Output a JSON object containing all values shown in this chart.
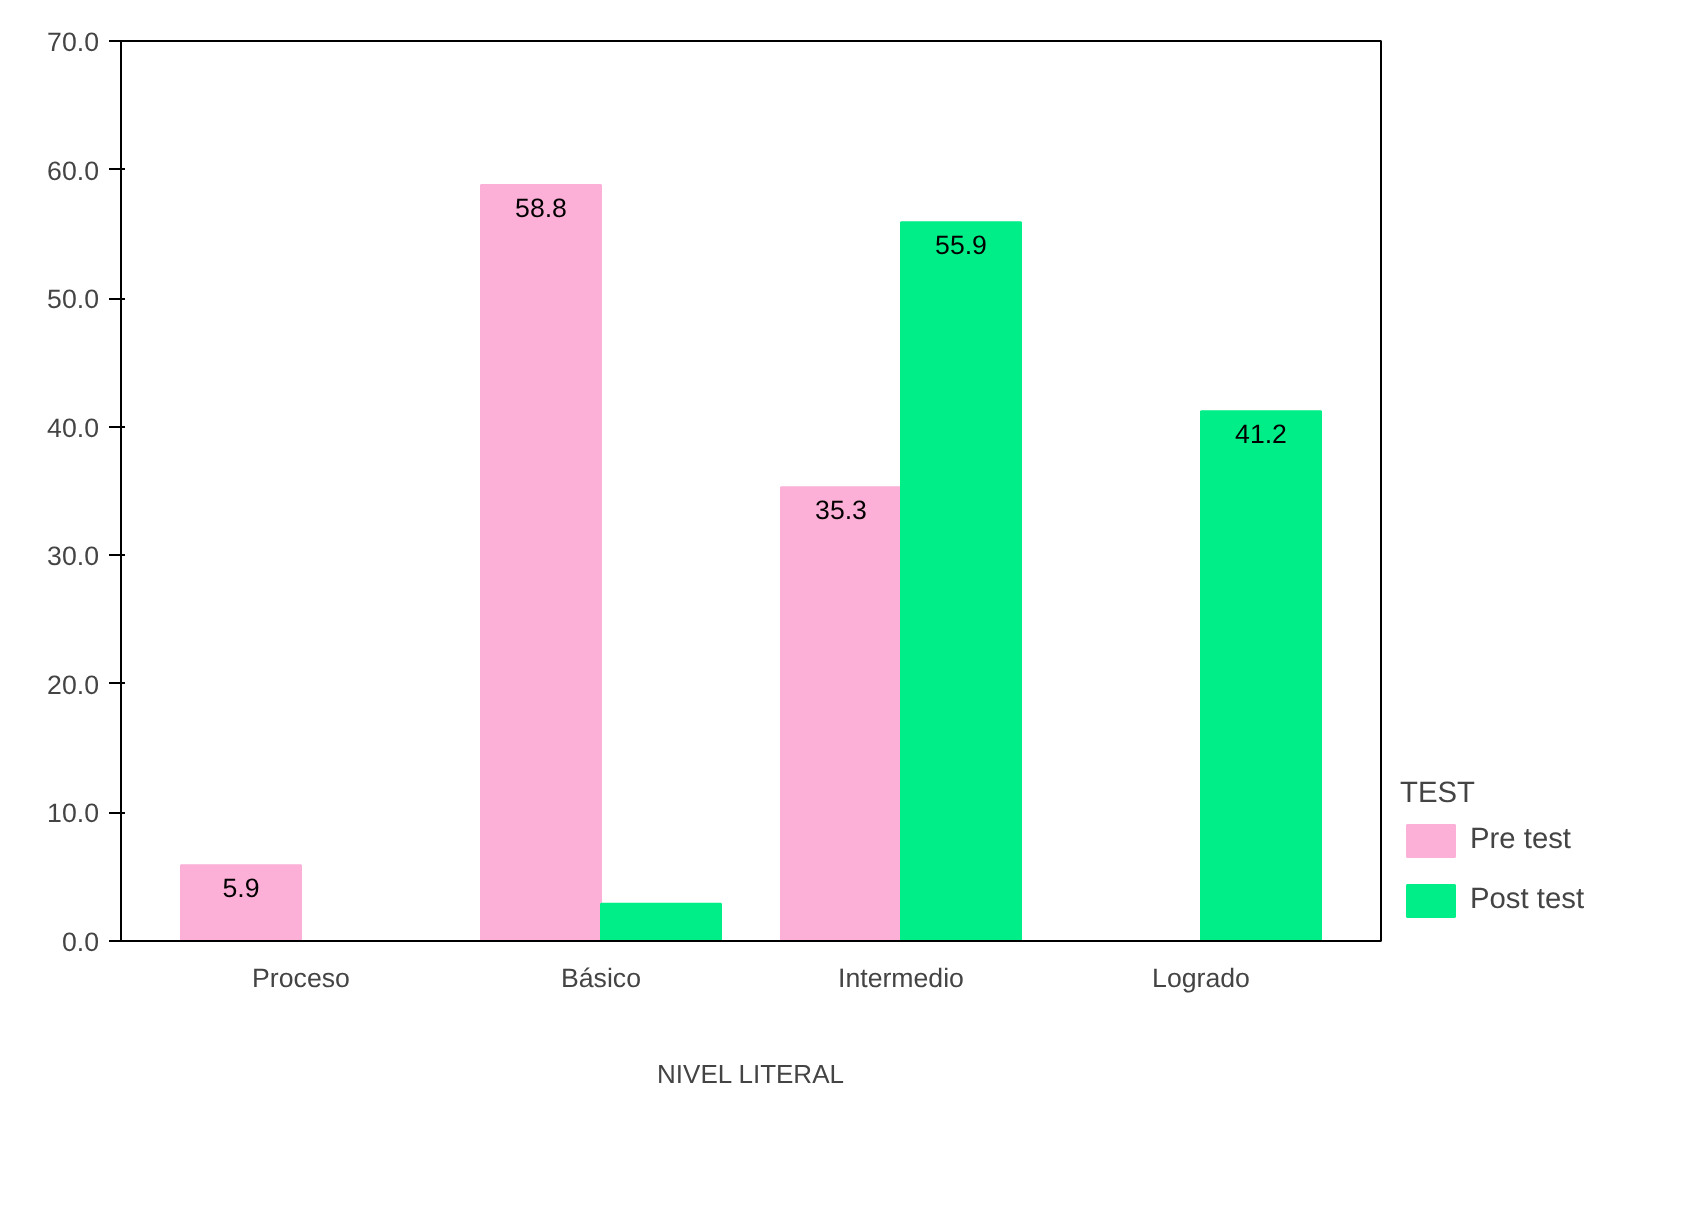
{
  "chart_data": {
    "type": "bar",
    "xlabel": "NIVEL LITERAL",
    "legend_title": "TEST",
    "categories": [
      "Proceso",
      "Básico",
      "Intermedio",
      "Logrado"
    ],
    "series": [
      {
        "name": "Pre test",
        "color": "#fcb0d8",
        "values": [
          5.9,
          58.8,
          35.3,
          0
        ],
        "value_labels": [
          "5.9",
          "58.8",
          "35.3",
          null
        ]
      },
      {
        "name": "Post test",
        "color": "#00ee88",
        "values": [
          0,
          2.9,
          55.9,
          41.2
        ],
        "value_labels": [
          null,
          null,
          "55.9",
          "41.2"
        ]
      }
    ],
    "ylim": [
      0,
      70
    ],
    "yticks": [
      {
        "value": 0,
        "label": "0.0"
      },
      {
        "value": 10,
        "label": "10.0"
      },
      {
        "value": 20,
        "label": "20.0"
      },
      {
        "value": 30,
        "label": "30.0"
      },
      {
        "value": 40,
        "label": "40.0"
      },
      {
        "value": 50,
        "label": "50.0"
      },
      {
        "value": 60,
        "label": "60.0"
      },
      {
        "value": 70,
        "label": "70.0"
      }
    ],
    "grid": false,
    "legend": "right"
  }
}
